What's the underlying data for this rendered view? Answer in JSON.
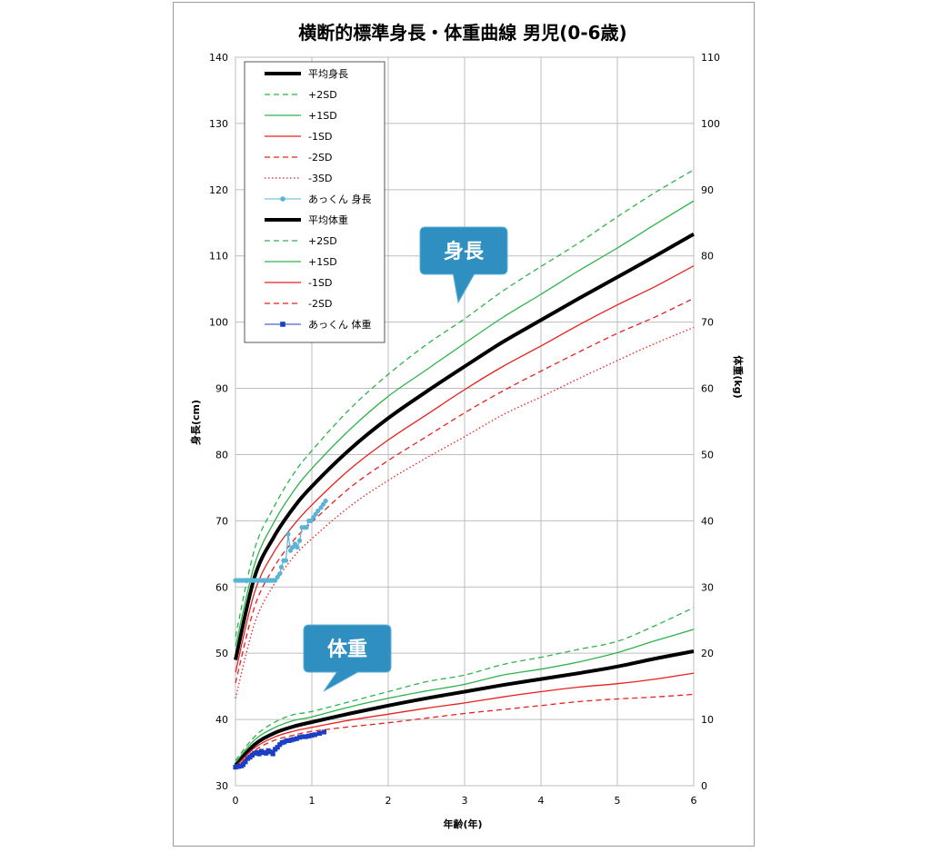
{
  "chart_data": {
    "type": "line",
    "title": "横断的標準身長・体重曲線 男児(0-6歳)",
    "xlabel": "年齢(年)",
    "ylabel": "身長(cm)",
    "y2label": "体重(kg)",
    "xlim": [
      0,
      6
    ],
    "ylim": [
      30,
      140
    ],
    "y2lim": [
      0,
      110
    ],
    "xticks": [
      0,
      1,
      2,
      3,
      4,
      5,
      6
    ],
    "yticks": [
      30,
      40,
      50,
      60,
      70,
      80,
      90,
      100,
      110,
      120,
      130,
      140
    ],
    "y2ticks": [
      0,
      10,
      20,
      30,
      40,
      50,
      60,
      70,
      80,
      90,
      100,
      110
    ],
    "grid": true,
    "legend_position": "top-left",
    "x": [
      0,
      0.25,
      0.5,
      0.75,
      1,
      1.5,
      2,
      2.5,
      3,
      3.5,
      4,
      4.5,
      5,
      5.5,
      6
    ],
    "height_series": [
      {
        "name": "平均身長",
        "axis": "left",
        "color": "#000000",
        "dash": "solid",
        "width": 4,
        "values": [
          49,
          61.5,
          67.5,
          71.8,
          75.2,
          80.8,
          85.5,
          89.5,
          93.3,
          97,
          100.3,
          103.6,
          106.8,
          110,
          113.3
        ]
      },
      {
        "name": "+2SD",
        "axis": "left",
        "color": "#2db34a",
        "dash": "dashed",
        "width": 1.3,
        "values": [
          52.5,
          65.7,
          72,
          76.9,
          80.6,
          86.9,
          92.1,
          96.6,
          100.5,
          104.7,
          108.4,
          112,
          115.9,
          119.6,
          123
        ]
      },
      {
        "name": "+1SD",
        "axis": "left",
        "color": "#2db34a",
        "dash": "solid",
        "width": 1.3,
        "values": [
          51,
          63.4,
          69.7,
          74.3,
          77.9,
          83.8,
          88.8,
          92.8,
          96.8,
          100.7,
          104.2,
          107.8,
          111.2,
          114.8,
          118.3
        ]
      },
      {
        "name": "-1SD",
        "axis": "left",
        "color": "#e8201e",
        "dash": "solid",
        "width": 1.3,
        "values": [
          47.1,
          59.2,
          65.2,
          69.2,
          72.4,
          77.8,
          82.2,
          86,
          89.8,
          93.3,
          96.4,
          99.6,
          102.6,
          105.4,
          108.5
        ]
      },
      {
        "name": "-2SD",
        "axis": "left",
        "color": "#e8201e",
        "dash": "dashed",
        "width": 1.3,
        "values": [
          45.5,
          57,
          62.9,
          66.9,
          69.8,
          75,
          79.1,
          82.7,
          86.3,
          89.6,
          92.6,
          95.5,
          98.3,
          100.8,
          103.6
        ]
      },
      {
        "name": "-3SD",
        "axis": "left",
        "color": "#e8201e",
        "dash": "dotted",
        "width": 1.3,
        "values": [
          43.2,
          54.5,
          60.3,
          64.4,
          67.3,
          72.2,
          76.1,
          79.5,
          82.7,
          86,
          88.7,
          91.5,
          94.2,
          96.8,
          99.2
        ]
      }
    ],
    "weight_series": [
      {
        "name": "平均体重",
        "axis": "right",
        "color": "#000000",
        "dash": "solid",
        "width": 4,
        "values": [
          3.1,
          6.2,
          7.9,
          8.9,
          9.6,
          10.9,
          12.1,
          13.2,
          14.2,
          15.2,
          16.1,
          17,
          18,
          19.2,
          20.3
        ]
      },
      {
        "name": "+2SD",
        "axis": "right",
        "color": "#2db34a",
        "dash": "dashed",
        "width": 1.3,
        "values": [
          3.8,
          7.4,
          9.5,
          10.7,
          11.2,
          12.7,
          14.2,
          15.7,
          16.7,
          18.3,
          19.4,
          20.6,
          21.8,
          24.2,
          26.9
        ]
      },
      {
        "name": "+1SD",
        "axis": "right",
        "color": "#2db34a",
        "dash": "solid",
        "width": 1.3,
        "values": [
          3.5,
          6.9,
          8.7,
          9.8,
          10.4,
          11.9,
          13.2,
          14.3,
          15.3,
          16.7,
          17.6,
          18.7,
          20.1,
          21.9,
          23.6
        ]
      },
      {
        "name": "-1SD",
        "axis": "right",
        "color": "#e8201e",
        "dash": "solid",
        "width": 1.3,
        "values": [
          2.9,
          5.7,
          7.3,
          8.2,
          8.8,
          9.9,
          10.8,
          11.7,
          12.5,
          13.4,
          14.2,
          14.9,
          15.4,
          16.1,
          17
        ]
      },
      {
        "name": "-2SD",
        "axis": "right",
        "color": "#e8201e",
        "dash": "dashed",
        "width": 1.3,
        "values": [
          2.6,
          5.3,
          6.8,
          7.6,
          8.2,
          8.9,
          9.5,
          10.2,
          10.9,
          11.5,
          12.1,
          12.7,
          13.1,
          13.4,
          13.8
        ]
      }
    ],
    "child_height": {
      "name": "あっくん 身長",
      "axis": "left",
      "color": "#5ab4d6",
      "x": [
        0.0,
        0.02,
        0.04,
        0.06,
        0.08,
        0.1,
        0.12,
        0.14,
        0.16,
        0.18,
        0.2,
        0.22,
        0.24,
        0.26,
        0.28,
        0.3,
        0.32,
        0.34,
        0.36,
        0.38,
        0.4,
        0.42,
        0.44,
        0.46,
        0.48,
        0.5,
        0.52,
        0.55,
        0.58,
        0.6,
        0.63,
        0.66,
        0.69,
        0.72,
        0.75,
        0.78,
        0.81,
        0.84,
        0.87,
        0.9,
        0.93,
        0.96,
        0.99,
        1.02,
        1.05,
        1.08,
        1.12,
        1.15,
        1.18
      ],
      "y": [
        61,
        61,
        61,
        61,
        61,
        61,
        61,
        61,
        61,
        61,
        61,
        61,
        61,
        61,
        61,
        61,
        61,
        61,
        61,
        61,
        61,
        61,
        61,
        61,
        61,
        61,
        61,
        61.5,
        62,
        63,
        64,
        64,
        68,
        65.5,
        66,
        66.5,
        66,
        67,
        69,
        69,
        69,
        70,
        70,
        70.5,
        71,
        71.5,
        72,
        72.5,
        73
      ]
    },
    "child_weight": {
      "name": "あっくん 体重",
      "axis": "right",
      "color": "#1b3fc4",
      "x": [
        0.0,
        0.02,
        0.04,
        0.06,
        0.08,
        0.1,
        0.13,
        0.16,
        0.19,
        0.22,
        0.25,
        0.28,
        0.31,
        0.34,
        0.37,
        0.4,
        0.43,
        0.46,
        0.49,
        0.52,
        0.55,
        0.58,
        0.61,
        0.64,
        0.67,
        0.7,
        0.73,
        0.76,
        0.8,
        0.84,
        0.88,
        0.92,
        0.96,
        1.0,
        1.04,
        1.1,
        1.16
      ],
      "y": [
        2.8,
        2.9,
        2.9,
        3.0,
        3.0,
        3.2,
        3.6,
        4.1,
        4.3,
        4.6,
        4.9,
        5.0,
        4.8,
        5.2,
        5.0,
        4.9,
        5.3,
        5.1,
        4.8,
        5.5,
        5.8,
        6.2,
        6.5,
        6.6,
        6.8,
        6.8,
        6.9,
        7.0,
        7.1,
        7.3,
        7.4,
        7.4,
        7.5,
        7.6,
        7.7,
        7.9,
        8.1
      ]
    }
  },
  "legend": {
    "items": [
      {
        "label": "平均身長",
        "color": "#000000",
        "dash": "solid",
        "width": 4,
        "marker": "none"
      },
      {
        "label": "+2SD",
        "color": "#2db34a",
        "dash": "dashed",
        "width": 1.3,
        "marker": "none"
      },
      {
        "label": "+1SD",
        "color": "#2db34a",
        "dash": "solid",
        "width": 1.3,
        "marker": "none"
      },
      {
        "label": "-1SD",
        "color": "#e8201e",
        "dash": "solid",
        "width": 1.3,
        "marker": "none"
      },
      {
        "label": "-2SD",
        "color": "#e8201e",
        "dash": "dashed",
        "width": 1.3,
        "marker": "none"
      },
      {
        "label": "-3SD",
        "color": "#e8201e",
        "dash": "dotted",
        "width": 1.3,
        "marker": "none"
      },
      {
        "label": "あっくん 身長",
        "color": "#5ab4d6",
        "dash": "solid",
        "width": 1,
        "marker": "circle"
      },
      {
        "label": "平均体重",
        "color": "#000000",
        "dash": "solid",
        "width": 4,
        "marker": "none"
      },
      {
        "label": "+2SD",
        "color": "#2db34a",
        "dash": "dashed",
        "width": 1.3,
        "marker": "none"
      },
      {
        "label": "+1SD",
        "color": "#2db34a",
        "dash": "solid",
        "width": 1.3,
        "marker": "none"
      },
      {
        "label": "-1SD",
        "color": "#e8201e",
        "dash": "solid",
        "width": 1.3,
        "marker": "none"
      },
      {
        "label": "-2SD",
        "color": "#e8201e",
        "dash": "dashed",
        "width": 1.3,
        "marker": "none"
      },
      {
        "label": "あっくん 体重",
        "color": "#1b3fc4",
        "dash": "solid",
        "width": 1,
        "marker": "square"
      }
    ]
  },
  "callouts": {
    "height_label": "身長",
    "weight_label": "体重",
    "fill_color": "#2f8fc0"
  },
  "colors": {
    "grid": "#bdbdbd",
    "axis": "#8a8a8a",
    "plot_bg": "#ffffff"
  }
}
